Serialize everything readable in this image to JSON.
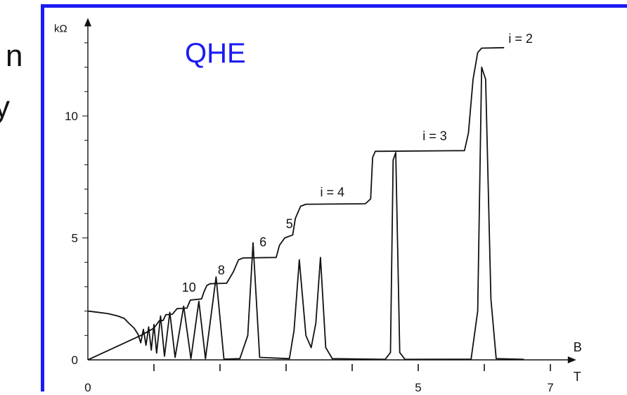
{
  "side_text": {
    "left_word_1": "n",
    "left_word_2": "y"
  },
  "chart_data": {
    "type": "line",
    "title": "QHE",
    "title_color": "#1b1bf5",
    "border_color": "#1b1bf5",
    "xlabel": "B",
    "xunit": "T",
    "ylabel": "kΩ",
    "xlim": [
      0,
      7.2
    ],
    "ylim": [
      0,
      13.5
    ],
    "x_tick_labels": [
      {
        "x": 0,
        "label": "0"
      },
      {
        "x": 5,
        "label": "5"
      },
      {
        "x": 7,
        "label": "7"
      }
    ],
    "y_tick_labels": [
      {
        "y": 0,
        "label": "0"
      },
      {
        "y": 5,
        "label": "5"
      },
      {
        "y": 10,
        "label": "10"
      }
    ],
    "grid": false,
    "plateau_labels": [
      {
        "label": "10",
        "x": 1.53,
        "y": 2.8
      },
      {
        "label": "8",
        "x": 2.02,
        "y": 3.5
      },
      {
        "label": "6",
        "x": 2.65,
        "y": 4.65
      },
      {
        "label": "5",
        "x": 3.05,
        "y": 5.4
      },
      {
        "label": "i = 4",
        "x": 3.7,
        "y": 6.7
      },
      {
        "label": "i = 3",
        "x": 5.25,
        "y": 9.0
      },
      {
        "label": "i = 2",
        "x": 6.55,
        "y": 13.0
      }
    ],
    "series": [
      {
        "values": [
          [
            0,
            0
          ],
          [
            0.8,
            1.0
          ],
          [
            1.0,
            1.3
          ],
          [
            1.08,
            1.6
          ],
          [
            1.14,
            1.62
          ],
          [
            1.18,
            1.85
          ],
          [
            1.28,
            1.87
          ],
          [
            1.35,
            2.1
          ],
          [
            1.5,
            2.12
          ],
          [
            1.55,
            2.45
          ],
          [
            1.72,
            2.5
          ],
          [
            1.76,
            2.8
          ],
          [
            1.8,
            3.05
          ],
          [
            1.85,
            3.12
          ],
          [
            2.1,
            3.14
          ],
          [
            2.2,
            3.6
          ],
          [
            2.28,
            4.1
          ],
          [
            2.35,
            4.18
          ],
          [
            2.85,
            4.2
          ],
          [
            2.9,
            4.7
          ],
          [
            2.98,
            5.0
          ],
          [
            3.1,
            5.12
          ],
          [
            3.14,
            5.8
          ],
          [
            3.22,
            6.3
          ],
          [
            3.3,
            6.38
          ],
          [
            4.2,
            6.4
          ],
          [
            4.28,
            6.6
          ],
          [
            4.31,
            8.3
          ],
          [
            4.35,
            8.55
          ],
          [
            5.7,
            8.58
          ],
          [
            5.76,
            9.3
          ],
          [
            5.83,
            11.5
          ],
          [
            5.9,
            12.6
          ],
          [
            5.96,
            12.78
          ],
          [
            6.3,
            12.8
          ]
        ]
      },
      {
        "values": [
          [
            0,
            2.0
          ],
          [
            0.15,
            1.95
          ],
          [
            0.3,
            1.9
          ],
          [
            0.45,
            1.8
          ],
          [
            0.55,
            1.7
          ],
          [
            0.62,
            1.5
          ],
          [
            0.7,
            1.3
          ],
          [
            0.76,
            1.05
          ],
          [
            0.8,
            0.7
          ],
          [
            0.84,
            1.25
          ],
          [
            0.88,
            0.6
          ],
          [
            0.92,
            1.35
          ],
          [
            0.96,
            0.4
          ],
          [
            1.0,
            1.45
          ],
          [
            1.04,
            0.28
          ],
          [
            1.1,
            1.8
          ],
          [
            1.16,
            0.15
          ],
          [
            1.24,
            1.95
          ],
          [
            1.32,
            0.1
          ],
          [
            1.45,
            2.2
          ],
          [
            1.56,
            0.05
          ],
          [
            1.68,
            2.4
          ],
          [
            1.78,
            0.05
          ],
          [
            1.94,
            3.4
          ],
          [
            2.06,
            0.03
          ],
          [
            2.3,
            0.05
          ],
          [
            2.42,
            1.0
          ],
          [
            2.5,
            4.8
          ],
          [
            2.6,
            0.1
          ],
          [
            3.05,
            0.05
          ],
          [
            3.12,
            1.2
          ],
          [
            3.2,
            4.1
          ],
          [
            3.3,
            1.0
          ],
          [
            3.38,
            0.5
          ],
          [
            3.45,
            1.5
          ],
          [
            3.52,
            4.2
          ],
          [
            3.6,
            0.5
          ],
          [
            3.7,
            0.05
          ],
          [
            4.5,
            0.02
          ],
          [
            4.58,
            0.3
          ],
          [
            4.62,
            8.2
          ],
          [
            4.66,
            8.5
          ],
          [
            4.72,
            0.3
          ],
          [
            4.8,
            0.02
          ],
          [
            5.8,
            0.03
          ],
          [
            5.9,
            2.0
          ],
          [
            5.96,
            12.0
          ],
          [
            6.02,
            11.5
          ],
          [
            6.1,
            2.5
          ],
          [
            6.18,
            0.05
          ],
          [
            6.6,
            0.02
          ]
        ]
      }
    ]
  }
}
